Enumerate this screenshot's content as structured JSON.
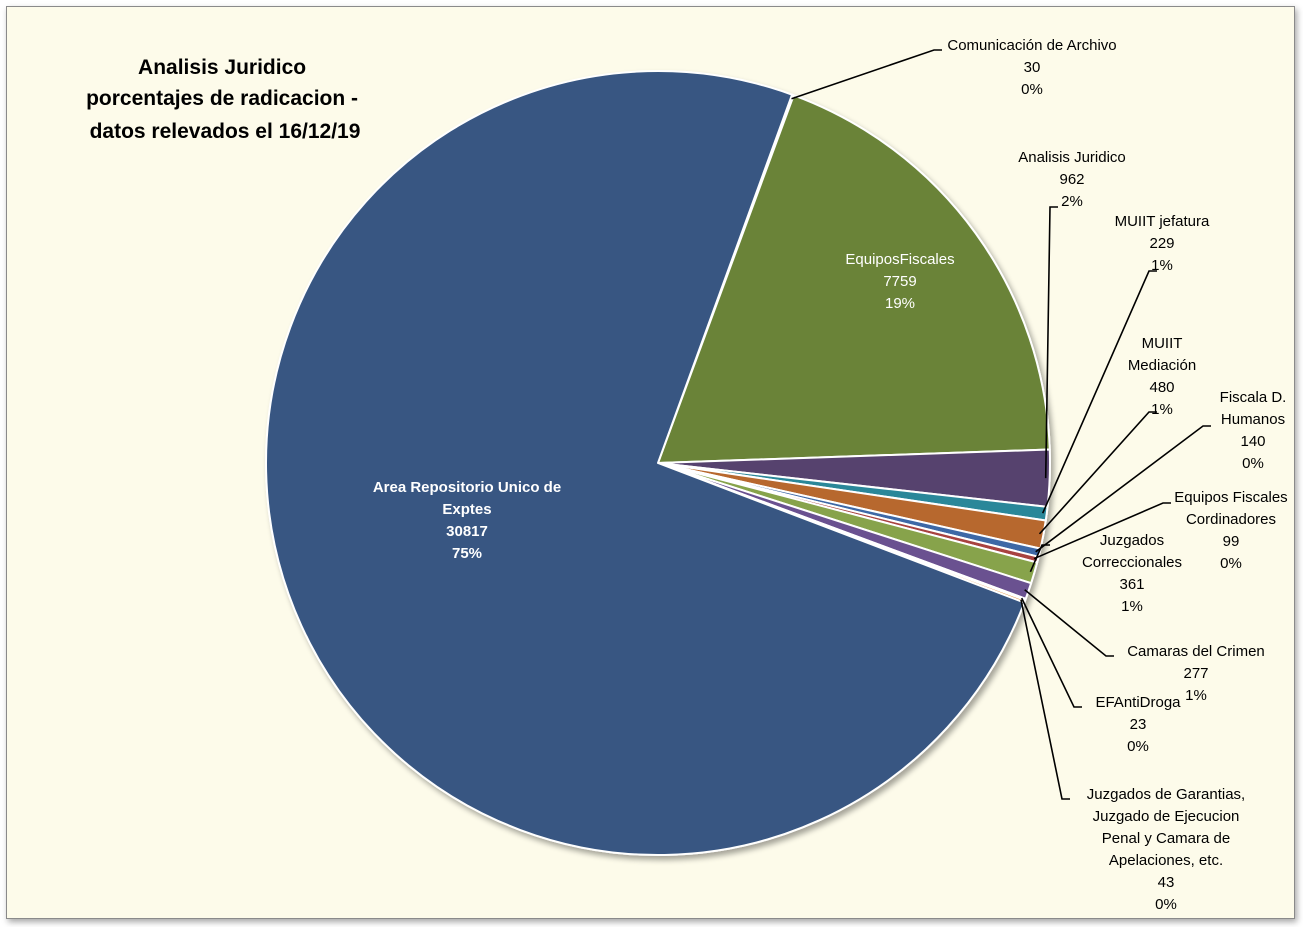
{
  "chart_data": {
    "type": "pie",
    "title": [
      "Analisis Juridico",
      "porcentajes de radicacion -",
      "datos relevados el 16/12/19"
    ],
    "slices": [
      {
        "name": [
          "Comunicación de Archivo"
        ],
        "value": 30,
        "percent": "0%",
        "color": "#B04C47"
      },
      {
        "name": [
          "EquiposFiscales"
        ],
        "value": 7759,
        "percent": "19%",
        "color": "#6A8339"
      },
      {
        "name": [
          "Analisis Juridico"
        ],
        "value": 962,
        "percent": "2%",
        "color": "#57426E"
      },
      {
        "name": [
          "MUIIT jefatura"
        ],
        "value": 229,
        "percent": "1%",
        "color": "#2B8799"
      },
      {
        "name": [
          "MUIIT",
          "Mediación"
        ],
        "value": 480,
        "percent": "1%",
        "color": "#B7672D"
      },
      {
        "name": [
          "Fiscala D.",
          "Humanos"
        ],
        "value": 140,
        "percent": "0%",
        "color": "#3E68A6"
      },
      {
        "name": [
          "Equipos Fiscales",
          "Cordinadores"
        ],
        "value": 99,
        "percent": "0%",
        "color": "#A8423F"
      },
      {
        "name": [
          "Juzgados",
          "Correccionales"
        ],
        "value": 361,
        "percent": "1%",
        "color": "#87A34C"
      },
      {
        "name": [
          "Camaras del Crimen"
        ],
        "value": 277,
        "percent": "1%",
        "color": "#6B5190"
      },
      {
        "name": [
          "EFAntiDroga"
        ],
        "value": 23,
        "percent": "0%",
        "color": "#3794AA"
      },
      {
        "name": [
          "Juzgados de Garantias,",
          "Juzgado de Ejecucion",
          "Penal y Camara de",
          "Apelaciones, etc."
        ],
        "value": 43,
        "percent": "0%",
        "color": "#E28A32"
      },
      {
        "name": [
          "Area Repositorio Unico de",
          "Exptes"
        ],
        "value": 30817,
        "percent": "75%",
        "color": "#375782"
      }
    ]
  }
}
